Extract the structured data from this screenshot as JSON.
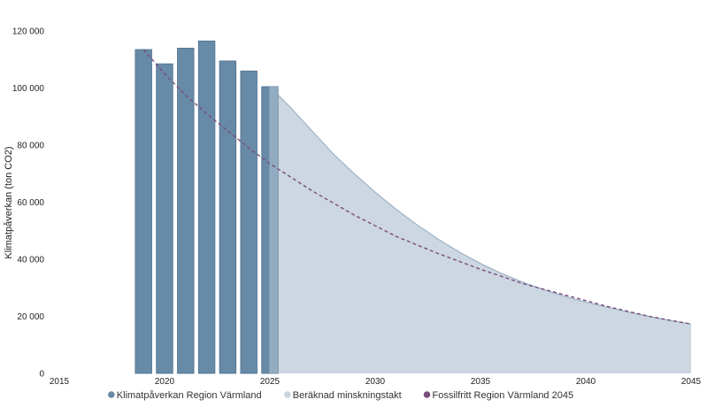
{
  "chart_data": {
    "type": "bar",
    "ylabel": "Klimatpåverkan (ton CO2)",
    "xlabel": "",
    "title": "",
    "xlim": [
      2015,
      2045
    ],
    "ylim": [
      0,
      120000
    ],
    "x_ticks": [
      2015,
      2020,
      2025,
      2030,
      2035,
      2040,
      2045
    ],
    "y_ticks": [
      0,
      20000,
      40000,
      60000,
      80000,
      100000,
      120000
    ],
    "y_tick_labels": [
      "0",
      "20 000",
      "40 000",
      "60 000",
      "80 000",
      "100 000",
      "120 000"
    ],
    "grid": false,
    "legend_position": "bottom",
    "series": [
      {
        "name": "Klimatpåverkan Region Värmland",
        "type": "bar",
        "color": "#678aa6",
        "x": [
          2019,
          2020,
          2021,
          2022,
          2023,
          2024,
          2025
        ],
        "values": [
          113500,
          108500,
          114000,
          116500,
          109500,
          106000,
          100500
        ]
      },
      {
        "name": "Beräknad minskningstakt",
        "type": "area",
        "color": "#c9d5df",
        "x": [
          2025,
          2026,
          2027,
          2028,
          2029,
          2030,
          2031,
          2032,
          2033,
          2034,
          2035,
          2036,
          2037,
          2038,
          2039,
          2040,
          2041,
          2042,
          2043,
          2044,
          2045
        ],
        "values": [
          100500,
          93000,
          85000,
          77000,
          70000,
          63500,
          57500,
          52000,
          47000,
          42500,
          38500,
          35000,
          32000,
          29300,
          27000,
          25000,
          23200,
          21500,
          20000,
          18500,
          17300
        ]
      },
      {
        "name": "Fossilfritt Region Värmland 2045",
        "type": "line",
        "style": "dashed",
        "color": "#7b4d7e",
        "x": [
          2019,
          2020,
          2021,
          2022,
          2023,
          2024,
          2025,
          2027,
          2029,
          2031,
          2033,
          2035,
          2037,
          2039,
          2041,
          2043,
          2045
        ],
        "values": [
          113500,
          105000,
          97500,
          91000,
          85000,
          79000,
          73500,
          64000,
          55500,
          48000,
          42000,
          36500,
          31500,
          27500,
          23500,
          20000,
          17300
        ]
      }
    ]
  }
}
